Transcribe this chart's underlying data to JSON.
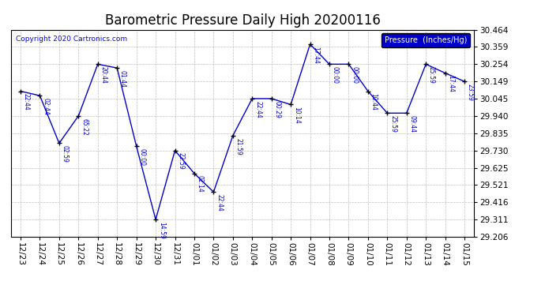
{
  "title": "Barometric Pressure Daily High 20200116",
  "copyright": "Copyright 2020 Cartronics.com",
  "legend_label": "Pressure  (Inches/Hg)",
  "x_labels": [
    "12/23",
    "12/24",
    "12/25",
    "12/26",
    "12/27",
    "12/28",
    "12/29",
    "12/30",
    "12/31",
    "01/01",
    "01/02",
    "01/03",
    "01/04",
    "01/05",
    "01/06",
    "01/07",
    "01/08",
    "01/09",
    "01/10",
    "01/11",
    "01/12",
    "01/13",
    "01/14",
    "01/15"
  ],
  "y_values": [
    30.09,
    30.063,
    29.774,
    29.94,
    30.254,
    30.231,
    29.757,
    29.311,
    29.73,
    29.591,
    29.478,
    29.82,
    30.045,
    30.045,
    30.009,
    30.375,
    30.254,
    30.254,
    30.09,
    29.957,
    29.957,
    30.254,
    30.2,
    30.149
  ],
  "point_labels": [
    "22:44",
    "02:44",
    "02:59",
    "65:22",
    "20:44",
    "01:44",
    "00:00",
    "14:59",
    "22:59",
    "02:14",
    "22:44",
    "21:59",
    "22:44",
    "00:29",
    "10:14",
    "17:44",
    "00:00",
    "00:00",
    "10:44",
    "25:59",
    "09:44",
    "25:59",
    "17:44",
    "23:59"
  ],
  "ylim_min": 29.206,
  "ylim_max": 30.464,
  "yticks": [
    29.206,
    29.311,
    29.416,
    29.521,
    29.625,
    29.73,
    29.835,
    29.94,
    30.045,
    30.149,
    30.254,
    30.359,
    30.464
  ],
  "line_color": "#0000cc",
  "bg_color": "#ffffff",
  "grid_color": "#b0b0b0",
  "title_fontsize": 12,
  "tick_fontsize": 7.5,
  "annot_fontsize": 5.5,
  "legend_bg": "#0000cc",
  "legend_text_color": "#ffffff"
}
